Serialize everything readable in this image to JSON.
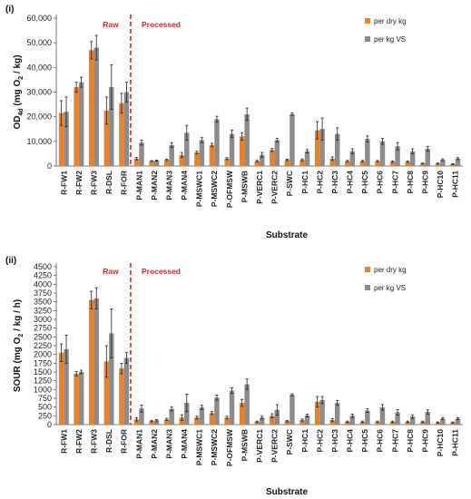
{
  "chart_data": [
    {
      "type": "bar",
      "panel_label": "(i)",
      "xlabel": "Substrate",
      "ylabel_pre": "OD",
      "ylabel_sub": "4d",
      "ylabel_mid": " (mg O",
      "ylabel_sub2": "2",
      "ylabel_post": " / kg)",
      "ylim": [
        0,
        60000
      ],
      "yticks": [
        "0",
        "10,000",
        "20,000",
        "30,000",
        "40,000",
        "50,000",
        "60,000"
      ],
      "ytick_values": [
        0,
        10000,
        20000,
        30000,
        40000,
        50000,
        60000
      ],
      "region_labels": [
        "Raw",
        "Processed"
      ],
      "legend": "top-right",
      "categories": [
        "R-FW1",
        "R-FW2",
        "R-FW3",
        "R-DSL",
        "R-FOR",
        "P-MAN1",
        "P-MAN2",
        "P-MAN3",
        "P-MAN4",
        "P-MSWC1",
        "P-MSWC2",
        "P-OFMSW",
        "P-MSWB",
        "P-VERC1",
        "P-VERC2",
        "P-SWC",
        "P-HC1",
        "P-HC2",
        "P-HC3",
        "P-HC4",
        "P-HC5",
        "P-HC6",
        "P-HC7",
        "P-HC8",
        "P-HC9",
        "P-HC10",
        "P-HC11"
      ],
      "series": [
        {
          "name": "per dry kg",
          "color": "#e8822a",
          "values": [
            21500,
            32000,
            47000,
            22500,
            25500,
            3000,
            2000,
            2500,
            4500,
            5500,
            8500,
            3000,
            12000,
            2000,
            6500,
            2500,
            2500,
            14500,
            3000,
            2000,
            2000,
            2000,
            1800,
            1800,
            1000,
            1000,
            800
          ],
          "errors": [
            5000,
            2000,
            3500,
            5500,
            4000,
            500,
            200,
            300,
            1000,
            500,
            700,
            400,
            1500,
            300,
            600,
            300,
            400,
            3500,
            700,
            300,
            300,
            300,
            300,
            300,
            200,
            200,
            200
          ]
        },
        {
          "name": "per kg VS",
          "color": "#8c8c8c",
          "values": [
            22000,
            34000,
            48000,
            32000,
            30000,
            9500,
            2200,
            8500,
            13500,
            10500,
            19000,
            13000,
            21000,
            4500,
            10500,
            21000,
            6000,
            15000,
            13000,
            6000,
            11000,
            10000,
            8000,
            6000,
            7000,
            2500,
            3000
          ],
          "errors": [
            6000,
            2000,
            5000,
            9000,
            4000,
            1000,
            200,
            1000,
            3000,
            1000,
            1200,
            1500,
            2500,
            1000,
            700,
            500,
            700,
            4500,
            2500,
            1000,
            1200,
            1200,
            1500,
            1000,
            1000,
            400,
            400
          ]
        }
      ]
    },
    {
      "type": "bar",
      "panel_label": "(ii)",
      "xlabel": "Substrate",
      "ylabel_pre": "SOUR",
      "ylabel_sub": "",
      "ylabel_mid": " (mg O",
      "ylabel_sub2": "2",
      "ylabel_post": " / kg / h)",
      "ylim": [
        0,
        4500
      ],
      "yticks": [
        "0",
        "250",
        "500",
        "750",
        "1000",
        "1250",
        "1500",
        "1750",
        "2000",
        "2250",
        "2500",
        "2750",
        "3000",
        "3250",
        "3500",
        "3750",
        "4000",
        "4250",
        "4500"
      ],
      "ytick_values": [
        0,
        250,
        500,
        750,
        1000,
        1250,
        1500,
        1750,
        2000,
        2250,
        2500,
        2750,
        3000,
        3250,
        3500,
        3750,
        4000,
        4250,
        4500
      ],
      "region_labels": [
        "Raw",
        "Processed"
      ],
      "legend": "top-right",
      "categories": [
        "R-FW1",
        "R-FW2",
        "R-FW3",
        "R-DSL",
        "R-FOR",
        "P-MAN1",
        "P-MAN2",
        "P-MAN3",
        "P-MAN4",
        "P-MSWC1",
        "P-MSWC2",
        "P-OFMSW",
        "P-MSWB",
        "P-VERC1",
        "P-VERC2",
        "P-SWC",
        "P-HC1",
        "P-HC2",
        "P-HC3",
        "P-HC4",
        "P-HC5",
        "P-HC6",
        "P-HC7",
        "P-HC8",
        "P-HC9",
        "P-HC10",
        "P-HC11"
      ],
      "series": [
        {
          "name": "per dry kg",
          "color": "#e8822a",
          "values": [
            2050,
            1450,
            3550,
            1800,
            1600,
            150,
            100,
            150,
            200,
            200,
            330,
            200,
            620,
            80,
            250,
            100,
            130,
            650,
            130,
            80,
            80,
            80,
            80,
            80,
            80,
            60,
            60
          ],
          "errors": [
            250,
            60,
            250,
            450,
            150,
            50,
            20,
            30,
            80,
            40,
            40,
            40,
            100,
            20,
            60,
            20,
            30,
            150,
            40,
            20,
            20,
            20,
            20,
            20,
            20,
            15,
            15
          ]
        },
        {
          "name": "per kg VS",
          "color": "#8c8c8c",
          "values": [
            2150,
            1500,
            3600,
            2600,
            1900,
            460,
            120,
            450,
            620,
            490,
            770,
            970,
            1150,
            200,
            420,
            850,
            260,
            700,
            620,
            250,
            400,
            490,
            350,
            230,
            360,
            170,
            170
          ],
          "errors": [
            400,
            50,
            300,
            700,
            150,
            100,
            20,
            60,
            250,
            60,
            70,
            80,
            150,
            40,
            150,
            30,
            40,
            100,
            70,
            50,
            50,
            80,
            80,
            50,
            60,
            30,
            30
          ]
        }
      ]
    }
  ]
}
